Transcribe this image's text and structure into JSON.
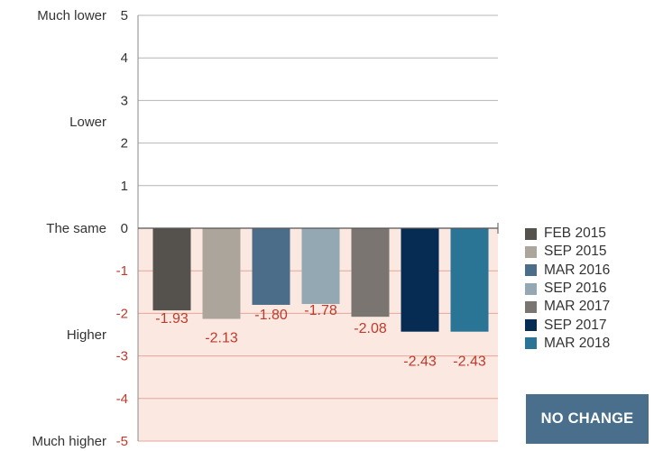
{
  "chart_data": {
    "type": "bar",
    "series": [
      {
        "name": "FEB 2015",
        "value": -1.93,
        "label": "-1.93",
        "color": "#55524d"
      },
      {
        "name": "SEP 2015",
        "value": -2.13,
        "label": "-2.13",
        "color": "#aca59b"
      },
      {
        "name": "MAR 2016",
        "value": -1.8,
        "label": "-1.80",
        "color": "#4c6d89"
      },
      {
        "name": "SEP 2016",
        "value": -1.78,
        "label": "-1.78",
        "color": "#93a8b3"
      },
      {
        "name": "MAR 2017",
        "value": -2.08,
        "label": "-2.08",
        "color": "#7a7570"
      },
      {
        "name": "SEP 2017",
        "value": -2.43,
        "label": "-2.43",
        "color": "#062c54"
      },
      {
        "name": "MAR 2018",
        "value": -2.43,
        "label": "-2.43",
        "color": "#2a7495"
      }
    ],
    "ylim": [
      -5,
      5
    ],
    "yticks": [
      "5",
      "4",
      "3",
      "2",
      "1",
      "0",
      "-1",
      "-2",
      "-3",
      "-4",
      "-5"
    ],
    "category_labels": [
      {
        "text": "Much lower",
        "at": 5
      },
      {
        "text": "Lower",
        "at": 2.5
      },
      {
        "text": "The same",
        "at": 0
      },
      {
        "text": "Higher",
        "at": -2.5
      },
      {
        "text": "Much higher",
        "at": -5
      }
    ],
    "legend_position": "right",
    "grid": true
  },
  "badge": {
    "text": "NO CHANGE",
    "color": "#4a6f8c"
  },
  "colors": {
    "negative_region": "#fbe9e1",
    "negative_text": "#c0392b",
    "grid_positive": "#b5b5b5",
    "grid_negative": "#e8a69a"
  }
}
